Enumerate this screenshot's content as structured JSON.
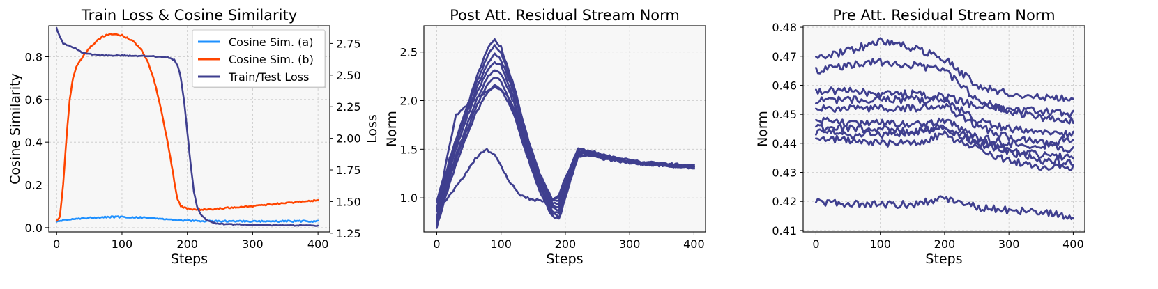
{
  "chart_data": [
    {
      "type": "line",
      "title": "Train Loss & Cosine Similarity",
      "xlabel": "Steps",
      "ylabel": "Cosine Similarity",
      "y2label": "Loss",
      "xlim": [
        -12,
        418
      ],
      "ylim": [
        -0.02,
        0.945
      ],
      "y2lim": [
        1.26,
        2.89
      ],
      "xticks": [
        0,
        100,
        200,
        300,
        400
      ],
      "yticks": [
        0.0,
        0.2,
        0.4,
        0.6,
        0.8
      ],
      "ytick_labels": [
        "0.0",
        "0.2",
        "0.4",
        "0.6",
        "0.8"
      ],
      "y2ticks": [
        1.25,
        1.5,
        1.75,
        2.0,
        2.25,
        2.5,
        2.75
      ],
      "y2tick_labels": [
        "1.25",
        "1.50",
        "1.75",
        "2.00",
        "2.25",
        "2.50",
        "2.75"
      ],
      "grid": true,
      "legend_position": "top-right",
      "series": [
        {
          "name": "Cosine Sim. (a)",
          "color": "#1e90ff",
          "axis": "left",
          "x": [
            0,
            20,
            40,
            60,
            80,
            100,
            120,
            140,
            160,
            180,
            200,
            220,
            240,
            260,
            280,
            300,
            320,
            340,
            360,
            380,
            400
          ],
          "y": [
            0.03,
            0.038,
            0.045,
            0.048,
            0.05,
            0.05,
            0.049,
            0.046,
            0.042,
            0.037,
            0.033,
            0.031,
            0.03,
            0.03,
            0.03,
            0.03,
            0.03,
            0.03,
            0.03,
            0.03,
            0.03
          ]
        },
        {
          "name": "Cosine Sim. (b)",
          "color": "#ff4500",
          "axis": "left",
          "x": [
            0,
            5,
            10,
            15,
            20,
            25,
            30,
            40,
            50,
            60,
            70,
            80,
            90,
            100,
            110,
            120,
            130,
            140,
            150,
            160,
            170,
            180,
            185,
            190,
            200,
            210,
            220,
            240,
            260,
            280,
            300,
            320,
            340,
            360,
            380,
            400
          ],
          "y": [
            0.03,
            0.05,
            0.2,
            0.42,
            0.6,
            0.7,
            0.75,
            0.8,
            0.84,
            0.87,
            0.895,
            0.905,
            0.905,
            0.9,
            0.885,
            0.865,
            0.83,
            0.77,
            0.68,
            0.55,
            0.4,
            0.22,
            0.13,
            0.1,
            0.09,
            0.085,
            0.085,
            0.088,
            0.092,
            0.097,
            0.1,
            0.107,
            0.113,
            0.118,
            0.122,
            0.128
          ]
        },
        {
          "name": "Train/Test Loss",
          "color": "#3f3f8f",
          "axis": "right",
          "x": [
            0,
            5,
            10,
            20,
            30,
            40,
            60,
            80,
            100,
            120,
            140,
            160,
            170,
            180,
            185,
            190,
            195,
            200,
            205,
            210,
            215,
            220,
            230,
            240,
            260,
            280,
            300,
            320,
            340,
            360,
            380,
            400
          ],
          "y": [
            2.87,
            2.8,
            2.75,
            2.73,
            2.71,
            2.675,
            2.66,
            2.655,
            2.655,
            2.652,
            2.65,
            2.645,
            2.64,
            2.62,
            2.58,
            2.48,
            2.3,
            2.05,
            1.8,
            1.58,
            1.46,
            1.4,
            1.35,
            1.33,
            1.32,
            1.32,
            1.315,
            1.315,
            1.312,
            1.312,
            1.31,
            1.31
          ]
        }
      ]
    },
    {
      "type": "line",
      "title": "Post Att. Residual Stream Norm",
      "xlabel": "Steps",
      "ylabel": "Norm",
      "xlim": [
        -20,
        418
      ],
      "ylim": [
        0.65,
        2.77
      ],
      "xticks": [
        0,
        100,
        200,
        300,
        400
      ],
      "yticks": [
        1.0,
        1.5,
        2.0,
        2.5
      ],
      "ytick_labels": [
        "1.0",
        "1.5",
        "2.0",
        "2.5"
      ],
      "grid": true,
      "color": "#3f3f8f",
      "series": [
        {
          "x": [
            0,
            20,
            40,
            60,
            80,
            90,
            100,
            120,
            140,
            160,
            180,
            190,
            200,
            220,
            240,
            260,
            280,
            300,
            320,
            340,
            360,
            380,
            400
          ],
          "y": [
            0.9,
            1.4,
            1.8,
            2.2,
            2.55,
            2.63,
            2.55,
            2.15,
            1.65,
            1.25,
            0.98,
            0.98,
            1.15,
            1.5,
            1.48,
            1.44,
            1.41,
            1.39,
            1.37,
            1.36,
            1.35,
            1.34,
            1.33
          ]
        },
        {
          "x": [
            0,
            20,
            40,
            60,
            80,
            90,
            100,
            120,
            140,
            160,
            180,
            190,
            200,
            220,
            240,
            260,
            280,
            300,
            320,
            340,
            360,
            380,
            400
          ],
          "y": [
            0.85,
            1.38,
            1.78,
            2.15,
            2.48,
            2.56,
            2.5,
            2.12,
            1.62,
            1.22,
            0.95,
            0.94,
            1.12,
            1.48,
            1.47,
            1.43,
            1.4,
            1.38,
            1.36,
            1.35,
            1.34,
            1.33,
            1.32
          ]
        },
        {
          "x": [
            0,
            20,
            40,
            60,
            80,
            90,
            100,
            120,
            140,
            160,
            180,
            190,
            200,
            220,
            240,
            260,
            280,
            300,
            320,
            340,
            360,
            380,
            400
          ],
          "y": [
            0.8,
            1.35,
            1.75,
            2.1,
            2.4,
            2.48,
            2.42,
            2.08,
            1.6,
            1.2,
            0.93,
            0.9,
            1.1,
            1.47,
            1.46,
            1.42,
            1.4,
            1.38,
            1.36,
            1.35,
            1.34,
            1.33,
            1.32
          ]
        },
        {
          "x": [
            0,
            20,
            40,
            60,
            80,
            90,
            100,
            120,
            140,
            160,
            180,
            190,
            200,
            220,
            240,
            260,
            280,
            300,
            320,
            340,
            360,
            380,
            400
          ],
          "y": [
            0.78,
            1.3,
            1.7,
            2.05,
            2.32,
            2.4,
            2.36,
            2.02,
            1.55,
            1.17,
            0.9,
            0.87,
            1.08,
            1.46,
            1.46,
            1.42,
            1.39,
            1.37,
            1.35,
            1.34,
            1.33,
            1.32,
            1.31
          ]
        },
        {
          "x": [
            0,
            20,
            40,
            60,
            80,
            90,
            100,
            120,
            140,
            160,
            180,
            190,
            200,
            220,
            240,
            260,
            280,
            300,
            320,
            340,
            360,
            380,
            400
          ],
          "y": [
            0.75,
            1.25,
            1.62,
            1.98,
            2.25,
            2.32,
            2.28,
            1.98,
            1.52,
            1.14,
            0.87,
            0.84,
            1.05,
            1.45,
            1.45,
            1.41,
            1.39,
            1.37,
            1.35,
            1.34,
            1.33,
            1.32,
            1.31
          ]
        },
        {
          "x": [
            0,
            20,
            40,
            60,
            80,
            90,
            100,
            120,
            140,
            160,
            180,
            190,
            200,
            220,
            240,
            260,
            280,
            300,
            320,
            340,
            360,
            380,
            400
          ],
          "y": [
            0.72,
            1.2,
            1.58,
            1.92,
            2.18,
            2.24,
            2.2,
            1.92,
            1.48,
            1.1,
            0.84,
            0.8,
            1.02,
            1.44,
            1.44,
            1.41,
            1.38,
            1.36,
            1.35,
            1.34,
            1.33,
            1.32,
            1.31
          ]
        },
        {
          "x": [
            0,
            20,
            40,
            60,
            80,
            90,
            100,
            120,
            140,
            160,
            180,
            190,
            200,
            220,
            240,
            260,
            280,
            300,
            320,
            340,
            360,
            380,
            400
          ],
          "y": [
            0.7,
            1.15,
            1.52,
            1.86,
            2.1,
            2.16,
            2.12,
            1.86,
            1.44,
            1.06,
            0.81,
            0.78,
            1.0,
            1.43,
            1.44,
            1.4,
            1.38,
            1.36,
            1.35,
            1.34,
            1.33,
            1.32,
            1.31
          ]
        },
        {
          "x": [
            0,
            10,
            20,
            30,
            40,
            55,
            70,
            90,
            110,
            130,
            150,
            170,
            180,
            190,
            200,
            220,
            240,
            260,
            280,
            300,
            320,
            340,
            360,
            380,
            400
          ],
          "y": [
            0.95,
            1.2,
            1.55,
            1.85,
            1.92,
            1.98,
            2.06,
            2.15,
            2.05,
            1.75,
            1.4,
            1.1,
            0.98,
            1.02,
            1.2,
            1.5,
            1.47,
            1.43,
            1.4,
            1.38,
            1.36,
            1.35,
            1.34,
            1.33,
            1.33
          ]
        },
        {
          "x": [
            0,
            10,
            20,
            40,
            60,
            75,
            90,
            110,
            130,
            150,
            170,
            180,
            190,
            200,
            220,
            240,
            260,
            280,
            300,
            320,
            340,
            360,
            380,
            400
          ],
          "y": [
            0.9,
            0.95,
            1.02,
            1.2,
            1.4,
            1.5,
            1.45,
            1.2,
            1.02,
            0.98,
            0.97,
            0.97,
            1.02,
            1.15,
            1.48,
            1.47,
            1.43,
            1.4,
            1.38,
            1.36,
            1.35,
            1.34,
            1.33,
            1.33
          ]
        }
      ]
    },
    {
      "type": "line",
      "title": "Pre Att. Residual Stream Norm",
      "xlabel": "Steps",
      "ylabel": "Norm",
      "xlim": [
        -20,
        418
      ],
      "ylim": [
        0.4095,
        0.4805
      ],
      "xticks": [
        0,
        100,
        200,
        300,
        400
      ],
      "yticks": [
        0.41,
        0.42,
        0.43,
        0.44,
        0.45,
        0.46,
        0.47,
        0.48
      ],
      "ytick_labels": [
        "0.41",
        "0.42",
        "0.43",
        "0.44",
        "0.45",
        "0.46",
        "0.47",
        "0.48"
      ],
      "grid": true,
      "color": "#3f3f8f",
      "series": [
        {
          "x": [
            0,
            50,
            100,
            150,
            200,
            250,
            300,
            350,
            400
          ],
          "y": [
            0.469,
            0.472,
            0.475,
            0.473,
            0.469,
            0.46,
            0.457,
            0.456,
            0.455
          ]
        },
        {
          "x": [
            0,
            50,
            100,
            150,
            200,
            250,
            300,
            350,
            400
          ],
          "y": [
            0.465,
            0.467,
            0.468,
            0.467,
            0.465,
            0.455,
            0.451,
            0.449,
            0.448
          ]
        },
        {
          "x": [
            0,
            50,
            100,
            150,
            200,
            250,
            300,
            350,
            400
          ],
          "y": [
            0.458,
            0.458,
            0.457,
            0.457,
            0.456,
            0.453,
            0.452,
            0.451,
            0.45
          ]
        },
        {
          "x": [
            0,
            50,
            100,
            150,
            200,
            250,
            300,
            350,
            400
          ],
          "y": [
            0.455,
            0.455,
            0.455,
            0.455,
            0.455,
            0.448,
            0.445,
            0.444,
            0.443
          ]
        },
        {
          "x": [
            0,
            50,
            100,
            150,
            200,
            250,
            300,
            350,
            400
          ],
          "y": [
            0.452,
            0.452,
            0.452,
            0.452,
            0.453,
            0.446,
            0.442,
            0.44,
            0.438
          ]
        },
        {
          "x": [
            0,
            50,
            100,
            150,
            200,
            250,
            300,
            350,
            400
          ],
          "y": [
            0.448,
            0.447,
            0.447,
            0.446,
            0.448,
            0.442,
            0.44,
            0.439,
            0.442
          ]
        },
        {
          "x": [
            0,
            50,
            100,
            150,
            200,
            250,
            300,
            350,
            400
          ],
          "y": [
            0.446,
            0.445,
            0.445,
            0.444,
            0.445,
            0.44,
            0.437,
            0.434,
            0.433
          ]
        },
        {
          "x": [
            0,
            50,
            100,
            150,
            200,
            250,
            300,
            350,
            400
          ],
          "y": [
            0.444,
            0.443,
            0.443,
            0.444,
            0.446,
            0.441,
            0.438,
            0.436,
            0.435
          ]
        },
        {
          "x": [
            0,
            50,
            100,
            150,
            200,
            250,
            300,
            350,
            400
          ],
          "y": [
            0.442,
            0.441,
            0.44,
            0.44,
            0.443,
            0.438,
            0.434,
            0.432,
            0.432
          ]
        },
        {
          "x": [
            0,
            50,
            100,
            150,
            200,
            250,
            300,
            350,
            400
          ],
          "y": [
            0.42,
            0.419,
            0.419,
            0.419,
            0.421,
            0.418,
            0.417,
            0.416,
            0.415
          ]
        }
      ]
    }
  ]
}
